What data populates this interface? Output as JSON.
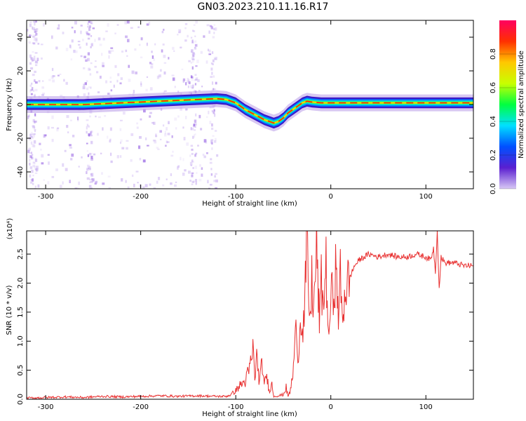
{
  "figure": {
    "title": "GN03.2023.210.11.16.R17"
  },
  "chart_data": [
    {
      "type": "heatmap",
      "title": "GN03.2023.210.11.16.R17",
      "xlabel": "Height of straight line (km)",
      "ylabel": "Frequency (Hz)",
      "xlim": [
        -320,
        150
      ],
      "ylim": [
        -50,
        50
      ],
      "x_ticks": [
        -300,
        -200,
        -100,
        0,
        100
      ],
      "x_tick_labels": [
        "-300",
        "-200",
        "-100",
        "0",
        "100"
      ],
      "y_ticks": [
        -40,
        -20,
        0,
        20,
        40
      ],
      "y_tick_labels": [
        "-40",
        "-20",
        "0",
        "20",
        "40"
      ],
      "colorbar": {
        "label": "Normalized spectral amplitude",
        "range": [
          0,
          1
        ],
        "ticks": [
          0,
          0.2,
          0.4,
          0.6,
          0.8
        ],
        "tick_labels": [
          "0.0",
          "0.2",
          "0.4",
          "0.6",
          "0.8"
        ],
        "colormap": [
          "#d8c8f5",
          "#5a1fd0",
          "#0050ff",
          "#00e0ff",
          "#00ff40",
          "#c8ff00",
          "#ffc800",
          "#ff3000",
          "#ff0060"
        ]
      },
      "ridge": {
        "name": "dominant frequency",
        "x": [
          -320,
          -300,
          -280,
          -260,
          -240,
          -220,
          -200,
          -180,
          -160,
          -140,
          -120,
          -110,
          -100,
          -90,
          -80,
          -70,
          -60,
          -55,
          -50,
          -45,
          -40,
          -35,
          -30,
          -25,
          -20,
          -10,
          0,
          20,
          40,
          60,
          80,
          100,
          120,
          150
        ],
        "y": [
          0,
          0,
          0,
          0,
          0.5,
          1,
          1.5,
          2,
          2.5,
          3,
          3.5,
          3,
          1,
          -3,
          -6,
          -9,
          -11,
          -10,
          -8,
          -5,
          -3,
          -1,
          1,
          2,
          1.5,
          1,
          1,
          1,
          1,
          1,
          1,
          1,
          1,
          1
        ]
      },
      "scatter_region": {
        "x_range": [
          -320,
          -120
        ],
        "y_range": [
          -50,
          50
        ]
      }
    },
    {
      "type": "line",
      "title": "",
      "xlabel": "Height of straight line (km)",
      "ylabel": "SNR (10 * v/v)",
      "y_multiplier": "(x10⁴)",
      "xlim": [
        -320,
        150
      ],
      "ylim": [
        0,
        2.9
      ],
      "x_ticks": [
        -300,
        -200,
        -100,
        0,
        100
      ],
      "x_tick_labels": [
        "-300",
        "-200",
        "-100",
        "0",
        "100"
      ],
      "y_ticks": [
        0,
        0.5,
        1,
        1.5,
        2,
        2.5
      ],
      "y_tick_labels": [
        "0.0",
        "0.5",
        "1.0",
        "1.5",
        "2.0",
        "2.5"
      ],
      "color": "#e83030",
      "series": [
        {
          "x": [
            -320,
            -300,
            -280,
            -260,
            -240,
            -220,
            -200,
            -180,
            -160,
            -140,
            -120,
            -110,
            -105,
            -100,
            -95,
            -90,
            -85,
            -82,
            -80,
            -78,
            -75,
            -72,
            -70,
            -68,
            -65,
            -62,
            -60,
            -55,
            -50,
            -47,
            -45,
            -43,
            -40,
            -38,
            -36,
            -34,
            -32,
            -30,
            -28,
            -25,
            -22,
            -20,
            -18,
            -15,
            -12,
            -10,
            -8,
            -5,
            -2,
            0,
            2,
            5,
            8,
            10,
            12,
            15,
            18,
            20,
            25,
            30,
            35,
            40,
            50,
            60,
            70,
            80,
            90,
            100,
            105,
            108,
            110,
            112,
            114,
            116,
            120,
            130,
            140,
            150
          ],
          "y": [
            0.02,
            0.03,
            0.04,
            0.03,
            0.05,
            0.04,
            0.05,
            0.06,
            0.05,
            0.06,
            0.05,
            0.05,
            0.08,
            0.15,
            0.25,
            0.3,
            0.55,
            0.85,
            0.4,
            0.7,
            0.3,
            0.65,
            0.2,
            0.45,
            0.15,
            0.25,
            0.05,
            0.06,
            0.08,
            0.2,
            0.05,
            0.12,
            0.4,
            0.9,
            1.3,
            0.6,
            1.6,
            1.1,
            1.4,
            2.7,
            1.2,
            2.1,
            1.5,
            2.65,
            1.3,
            2.0,
            1.6,
            2.3,
            0.9,
            1.9,
            1.7,
            2.2,
            1.5,
            2.1,
            1.3,
            1.9,
            2.0,
            2.1,
            2.3,
            2.4,
            2.45,
            2.5,
            2.45,
            2.5,
            2.45,
            2.45,
            2.5,
            2.45,
            2.4,
            2.6,
            2.2,
            2.9,
            1.9,
            2.45,
            2.35,
            2.35,
            2.3,
            2.3
          ]
        }
      ]
    }
  ]
}
